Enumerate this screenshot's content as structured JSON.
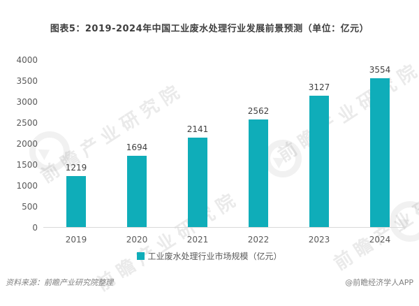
{
  "title": "图表5：2019-2024年中国工业废水处理行业发展前景预测（单位：亿元）",
  "chart_data": {
    "type": "bar",
    "categories": [
      "2019",
      "2020",
      "2021",
      "2022",
      "2023",
      "2024"
    ],
    "values": [
      1219,
      1694,
      2141,
      2562,
      3127,
      3554
    ],
    "title": "图表5：2019-2024年中国工业废水处理行业发展前景预测（单位：亿元）",
    "xlabel": "",
    "ylabel": "",
    "ylim": [
      0,
      4000
    ],
    "ytick_step": 500,
    "grid": false,
    "legend_position": "bottom",
    "bar_color": "#0fadb9"
  },
  "legend": {
    "label": "工业废水处理行业市场规模（亿元）"
  },
  "footer": {
    "source": "资料来源：前瞻产业研究院整理",
    "credit": "@前瞻经济学人APP"
  },
  "watermark": {
    "text": "前瞻产业研究院"
  },
  "colors": {
    "bar": "#0fadb9",
    "title_text": "#3f3f3f",
    "axis_text": "#595959",
    "footer_text": "#808080",
    "axis_line": "#d9d9d9"
  }
}
